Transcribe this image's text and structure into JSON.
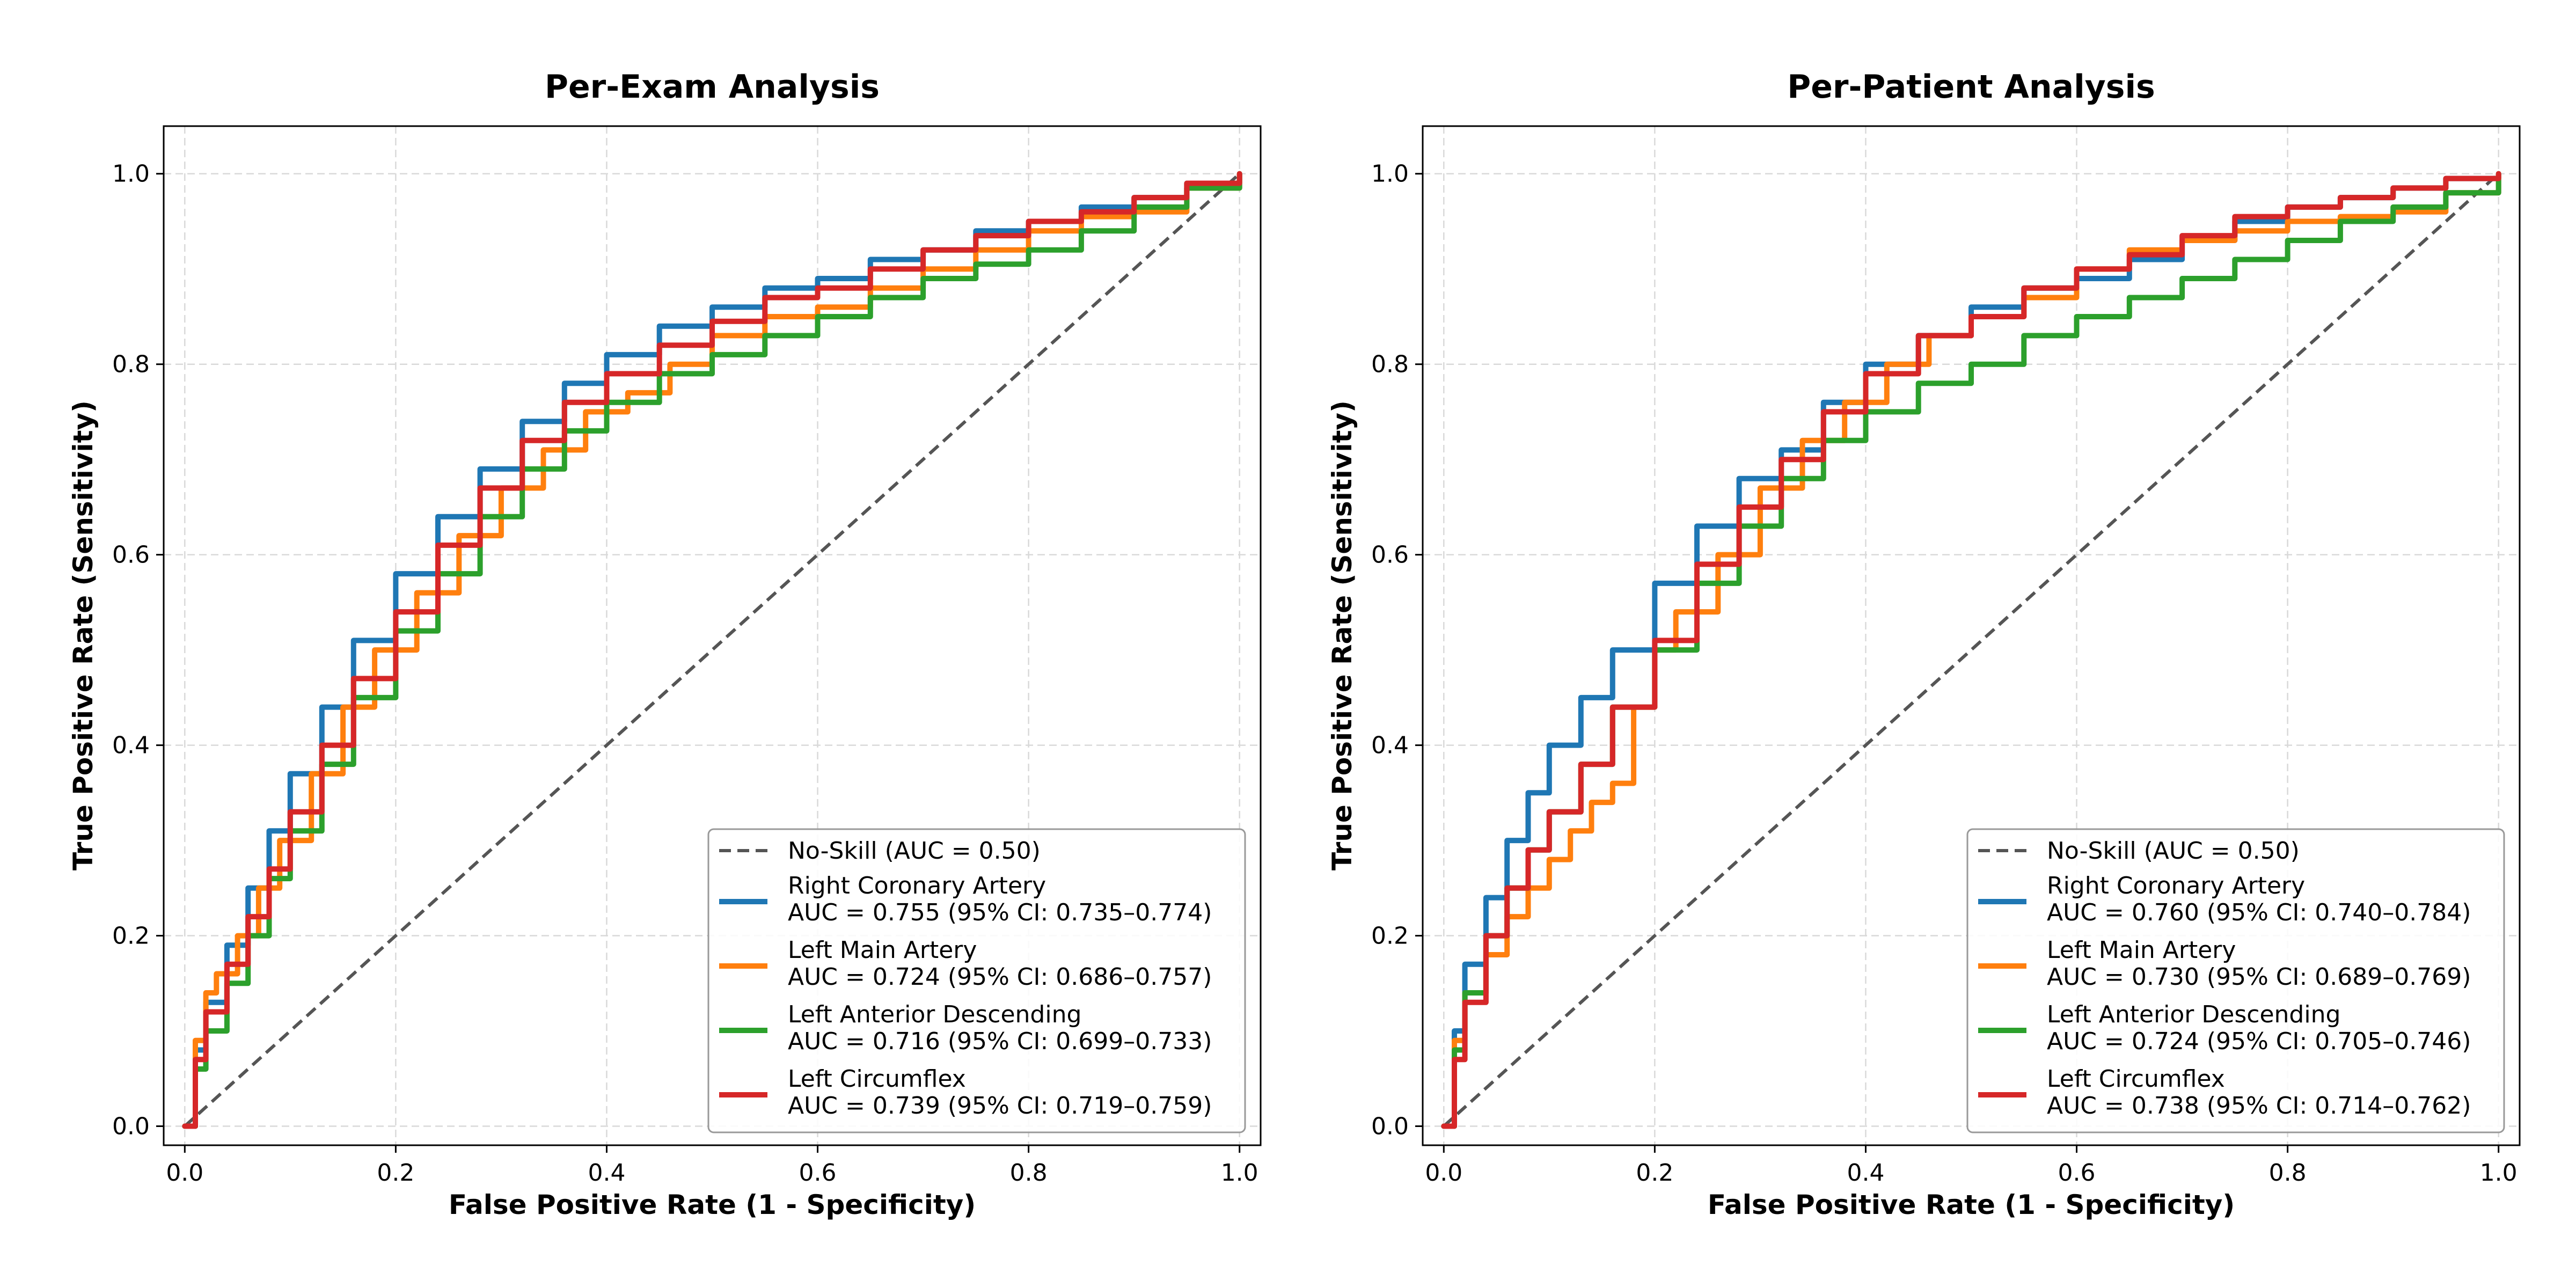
{
  "colors": {
    "rca": "#1f77b4",
    "lm": "#ff7f0e",
    "lad": "#2ca02c",
    "lcx": "#d62728",
    "noskill": "#555555"
  },
  "chart_data": [
    {
      "type": "line",
      "title": "Per-Exam Analysis",
      "xlabel": "False Positive Rate (1 - Specificity)",
      "ylabel": "True Positive Rate (Sensitivity)",
      "xlim": [
        -0.02,
        1.02
      ],
      "ylim": [
        -0.02,
        1.05
      ],
      "xticks": [
        "0.0",
        "0.2",
        "0.4",
        "0.6",
        "0.8",
        "1.0"
      ],
      "yticks": [
        "0.0",
        "0.2",
        "0.4",
        "0.6",
        "0.8",
        "1.0"
      ],
      "grid": true,
      "legend_position": "lower-right",
      "reference": {
        "label": "No-Skill (AUC = 0.50)",
        "x": [
          0,
          1
        ],
        "y": [
          0,
          1
        ]
      },
      "series": [
        {
          "name": "Right Coronary Artery",
          "auc_label": "AUC = 0.755 (95% CI: 0.735–0.774)",
          "color_key": "rca",
          "x": [
            0,
            0.01,
            0.02,
            0.04,
            0.06,
            0.08,
            0.1,
            0.13,
            0.16,
            0.2,
            0.24,
            0.28,
            0.32,
            0.36,
            0.4,
            0.45,
            0.5,
            0.55,
            0.6,
            0.65,
            0.7,
            0.75,
            0.8,
            0.85,
            0.9,
            0.95,
            1.0
          ],
          "y": [
            0,
            0.08,
            0.13,
            0.19,
            0.25,
            0.31,
            0.37,
            0.44,
            0.51,
            0.58,
            0.64,
            0.69,
            0.74,
            0.78,
            0.81,
            0.84,
            0.86,
            0.88,
            0.89,
            0.91,
            0.92,
            0.94,
            0.95,
            0.965,
            0.975,
            0.99,
            1.0
          ]
        },
        {
          "name": "Left Main Artery",
          "auc_label": "AUC = 0.724 (95% CI: 0.686–0.757)",
          "color_key": "lm",
          "x": [
            0,
            0.01,
            0.02,
            0.03,
            0.05,
            0.07,
            0.09,
            0.12,
            0.15,
            0.18,
            0.22,
            0.26,
            0.3,
            0.34,
            0.38,
            0.42,
            0.46,
            0.5,
            0.55,
            0.6,
            0.65,
            0.7,
            0.75,
            0.8,
            0.85,
            0.9,
            0.95,
            1.0
          ],
          "y": [
            0,
            0.09,
            0.14,
            0.16,
            0.2,
            0.25,
            0.3,
            0.37,
            0.44,
            0.5,
            0.56,
            0.62,
            0.67,
            0.71,
            0.75,
            0.77,
            0.8,
            0.83,
            0.85,
            0.86,
            0.88,
            0.9,
            0.92,
            0.94,
            0.955,
            0.96,
            0.985,
            1.0
          ]
        },
        {
          "name": "Left Anterior Descending",
          "auc_label": "AUC = 0.716 (95% CI: 0.699–0.733)",
          "color_key": "lad",
          "x": [
            0,
            0.01,
            0.02,
            0.04,
            0.06,
            0.08,
            0.1,
            0.13,
            0.16,
            0.2,
            0.24,
            0.28,
            0.32,
            0.36,
            0.4,
            0.45,
            0.5,
            0.55,
            0.6,
            0.65,
            0.7,
            0.75,
            0.8,
            0.85,
            0.9,
            0.95,
            1.0
          ],
          "y": [
            0,
            0.06,
            0.1,
            0.15,
            0.2,
            0.26,
            0.31,
            0.38,
            0.45,
            0.52,
            0.58,
            0.64,
            0.69,
            0.73,
            0.76,
            0.79,
            0.81,
            0.83,
            0.85,
            0.87,
            0.89,
            0.905,
            0.92,
            0.94,
            0.965,
            0.985,
            1.0
          ]
        },
        {
          "name": "Left Circumflex",
          "auc_label": "AUC = 0.739 (95% CI: 0.719–0.759)",
          "color_key": "lcx",
          "x": [
            0,
            0.01,
            0.02,
            0.04,
            0.06,
            0.08,
            0.1,
            0.13,
            0.16,
            0.2,
            0.24,
            0.28,
            0.32,
            0.36,
            0.4,
            0.45,
            0.5,
            0.55,
            0.6,
            0.65,
            0.7,
            0.75,
            0.8,
            0.85,
            0.9,
            0.95,
            1.0
          ],
          "y": [
            0,
            0.07,
            0.12,
            0.17,
            0.22,
            0.27,
            0.33,
            0.4,
            0.47,
            0.54,
            0.61,
            0.67,
            0.72,
            0.76,
            0.79,
            0.82,
            0.845,
            0.87,
            0.88,
            0.9,
            0.92,
            0.935,
            0.95,
            0.96,
            0.975,
            0.99,
            1.0
          ]
        }
      ]
    },
    {
      "type": "line",
      "title": "Per-Patient Analysis",
      "xlabel": "False Positive Rate (1 - Specificity)",
      "ylabel": "True Positive Rate (Sensitivity)",
      "xlim": [
        -0.02,
        1.02
      ],
      "ylim": [
        -0.02,
        1.05
      ],
      "xticks": [
        "0.0",
        "0.2",
        "0.4",
        "0.6",
        "0.8",
        "1.0"
      ],
      "yticks": [
        "0.0",
        "0.2",
        "0.4",
        "0.6",
        "0.8",
        "1.0"
      ],
      "grid": true,
      "legend_position": "lower-right",
      "reference": {
        "label": "No-Skill (AUC = 0.50)",
        "x": [
          0,
          1
        ],
        "y": [
          0,
          1
        ]
      },
      "series": [
        {
          "name": "Right Coronary Artery",
          "auc_label": "AUC = 0.760 (95% CI: 0.740–0.784)",
          "color_key": "rca",
          "x": [
            0,
            0.01,
            0.02,
            0.04,
            0.06,
            0.08,
            0.1,
            0.13,
            0.16,
            0.2,
            0.24,
            0.28,
            0.32,
            0.36,
            0.4,
            0.45,
            0.5,
            0.55,
            0.6,
            0.65,
            0.7,
            0.75,
            0.8,
            0.85,
            0.9,
            0.95,
            1.0
          ],
          "y": [
            0,
            0.1,
            0.17,
            0.24,
            0.3,
            0.35,
            0.4,
            0.45,
            0.5,
            0.57,
            0.63,
            0.68,
            0.71,
            0.76,
            0.8,
            0.83,
            0.86,
            0.88,
            0.89,
            0.91,
            0.93,
            0.95,
            0.965,
            0.975,
            0.985,
            0.995,
            1.0
          ]
        },
        {
          "name": "Left Main Artery",
          "auc_label": "AUC = 0.730 (95% CI: 0.689–0.769)",
          "color_key": "lm",
          "x": [
            0,
            0.01,
            0.02,
            0.04,
            0.06,
            0.08,
            0.1,
            0.12,
            0.14,
            0.16,
            0.18,
            0.2,
            0.22,
            0.26,
            0.3,
            0.34,
            0.38,
            0.42,
            0.46,
            0.5,
            0.55,
            0.6,
            0.65,
            0.7,
            0.75,
            0.8,
            0.85,
            0.9,
            0.95,
            1.0
          ],
          "y": [
            0,
            0.09,
            0.14,
            0.18,
            0.22,
            0.25,
            0.28,
            0.31,
            0.34,
            0.36,
            0.44,
            0.5,
            0.54,
            0.6,
            0.67,
            0.72,
            0.76,
            0.8,
            0.83,
            0.85,
            0.87,
            0.9,
            0.92,
            0.93,
            0.94,
            0.95,
            0.955,
            0.96,
            0.98,
            1.0
          ]
        },
        {
          "name": "Left Anterior Descending",
          "auc_label": "AUC = 0.724 (95% CI: 0.705–0.746)",
          "color_key": "lad",
          "x": [
            0,
            0.01,
            0.02,
            0.04,
            0.06,
            0.08,
            0.1,
            0.13,
            0.16,
            0.2,
            0.24,
            0.28,
            0.32,
            0.36,
            0.4,
            0.45,
            0.5,
            0.55,
            0.6,
            0.65,
            0.7,
            0.75,
            0.8,
            0.85,
            0.9,
            0.95,
            1.0
          ],
          "y": [
            0,
            0.08,
            0.14,
            0.2,
            0.25,
            0.29,
            0.33,
            0.38,
            0.44,
            0.5,
            0.57,
            0.63,
            0.68,
            0.72,
            0.75,
            0.78,
            0.8,
            0.83,
            0.85,
            0.87,
            0.89,
            0.91,
            0.93,
            0.95,
            0.965,
            0.98,
            1.0
          ]
        },
        {
          "name": "Left Circumflex",
          "auc_label": "AUC = 0.738 (95% CI: 0.714–0.762)",
          "color_key": "lcx",
          "x": [
            0,
            0.01,
            0.02,
            0.04,
            0.06,
            0.08,
            0.1,
            0.13,
            0.16,
            0.2,
            0.24,
            0.28,
            0.32,
            0.36,
            0.4,
            0.45,
            0.5,
            0.55,
            0.6,
            0.65,
            0.7,
            0.75,
            0.8,
            0.85,
            0.9,
            0.95,
            1.0
          ],
          "y": [
            0,
            0.07,
            0.13,
            0.2,
            0.25,
            0.29,
            0.33,
            0.38,
            0.44,
            0.51,
            0.59,
            0.65,
            0.7,
            0.75,
            0.79,
            0.83,
            0.85,
            0.88,
            0.9,
            0.915,
            0.935,
            0.955,
            0.965,
            0.975,
            0.985,
            0.995,
            1.0
          ]
        }
      ]
    }
  ]
}
